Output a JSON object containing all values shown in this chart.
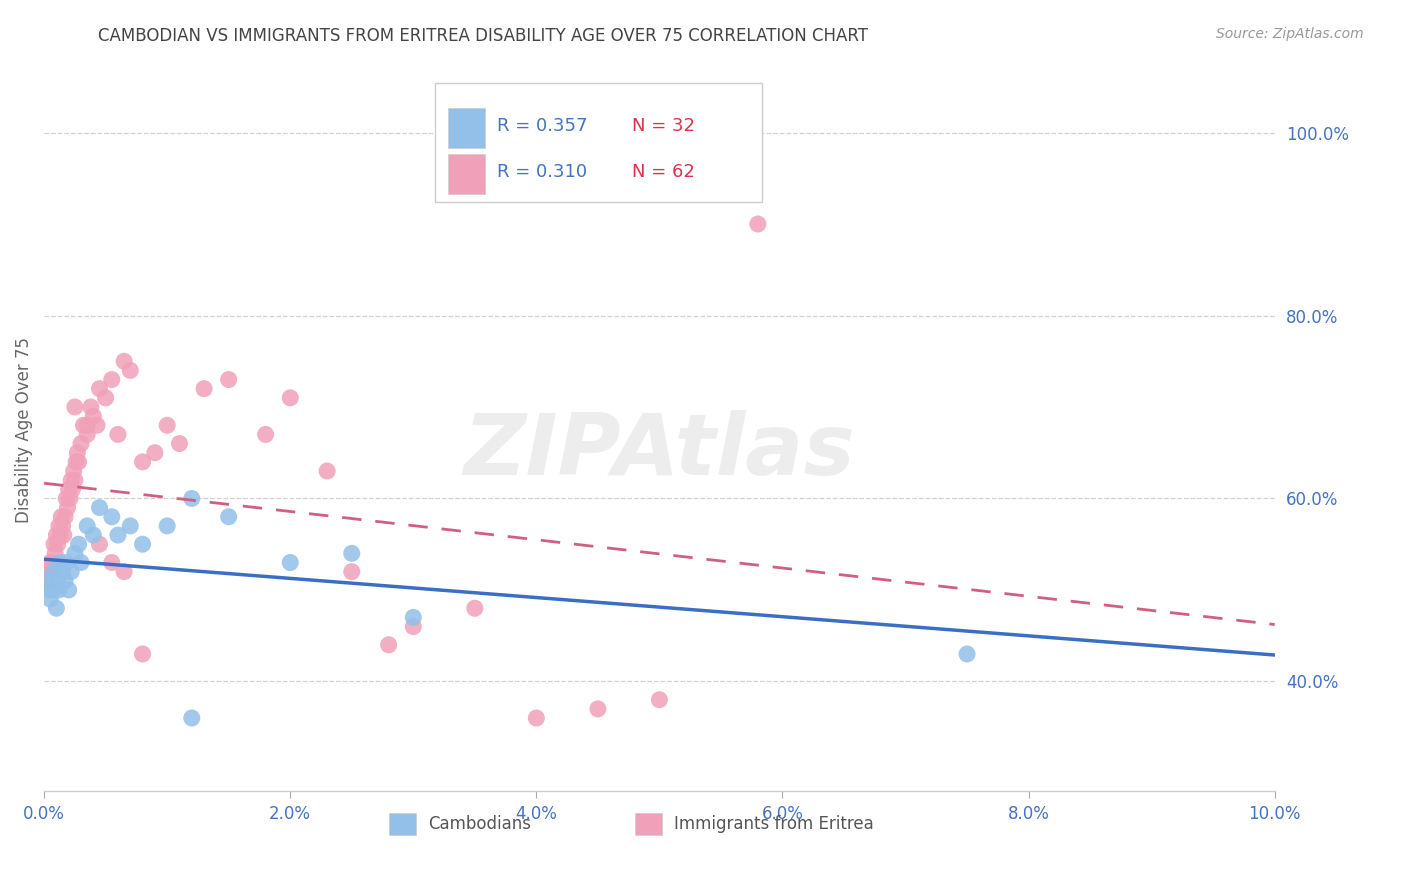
{
  "title": "CAMBODIAN VS IMMIGRANTS FROM ERITREA DISABILITY AGE OVER 75 CORRELATION CHART",
  "source_text": "Source: ZipAtlas.com",
  "ylabel": "Disability Age Over 75",
  "xlim": [
    0.0,
    10.0
  ],
  "ylim": [
    28.0,
    107.0
  ],
  "xtick_vals": [
    0.0,
    2.0,
    4.0,
    6.0,
    8.0,
    10.0
  ],
  "ytick_vals": [
    40.0,
    60.0,
    80.0,
    100.0
  ],
  "cambodian_color": "#92c0e8",
  "eritrea_color": "#f0a0b8",
  "cambodian_line_color": "#3a6fc4",
  "eritrea_line_color": "#d06080",
  "tick_label_color": "#4472c4",
  "label_color": "#666666",
  "cambodian_R": 0.357,
  "cambodian_N": 32,
  "eritrea_R": 0.31,
  "eritrea_N": 62,
  "watermark": "ZIPAtlas",
  "cambodian_x": [
    0.02,
    0.04,
    0.05,
    0.07,
    0.08,
    0.1,
    0.11,
    0.12,
    0.13,
    0.15,
    0.17,
    0.18,
    0.2,
    0.22,
    0.25,
    0.28,
    0.3,
    0.35,
    0.4,
    0.45,
    0.55,
    0.6,
    0.7,
    0.8,
    1.0,
    1.2,
    1.5,
    2.0,
    2.5,
    3.0,
    7.5,
    1.2
  ],
  "cambodian_y": [
    51,
    50,
    49,
    50,
    52,
    48,
    51,
    50,
    53,
    52,
    51,
    53,
    50,
    52,
    54,
    55,
    53,
    57,
    56,
    59,
    58,
    56,
    57,
    55,
    57,
    60,
    58,
    53,
    54,
    47,
    43,
    36
  ],
  "eritrea_x": [
    0.01,
    0.02,
    0.03,
    0.05,
    0.06,
    0.07,
    0.08,
    0.09,
    0.1,
    0.11,
    0.12,
    0.13,
    0.14,
    0.15,
    0.16,
    0.17,
    0.18,
    0.19,
    0.2,
    0.21,
    0.22,
    0.23,
    0.24,
    0.25,
    0.26,
    0.27,
    0.28,
    0.3,
    0.32,
    0.35,
    0.38,
    0.4,
    0.43,
    0.45,
    0.5,
    0.55,
    0.6,
    0.65,
    0.7,
    0.8,
    0.9,
    1.0,
    1.1,
    1.3,
    1.5,
    1.8,
    2.0,
    2.3,
    2.5,
    2.8,
    3.0,
    3.5,
    4.0,
    4.5,
    5.0,
    0.25,
    0.35,
    0.45,
    0.55,
    0.65,
    0.8,
    5.8
  ],
  "eritrea_y": [
    51,
    52,
    51,
    53,
    52,
    53,
    55,
    54,
    56,
    55,
    57,
    56,
    58,
    57,
    56,
    58,
    60,
    59,
    61,
    60,
    62,
    61,
    63,
    62,
    64,
    65,
    64,
    66,
    68,
    67,
    70,
    69,
    68,
    72,
    71,
    73,
    67,
    75,
    74,
    64,
    65,
    68,
    66,
    72,
    73,
    67,
    71,
    63,
    52,
    44,
    46,
    48,
    36,
    37,
    38,
    70,
    68,
    55,
    53,
    52,
    43,
    90
  ]
}
